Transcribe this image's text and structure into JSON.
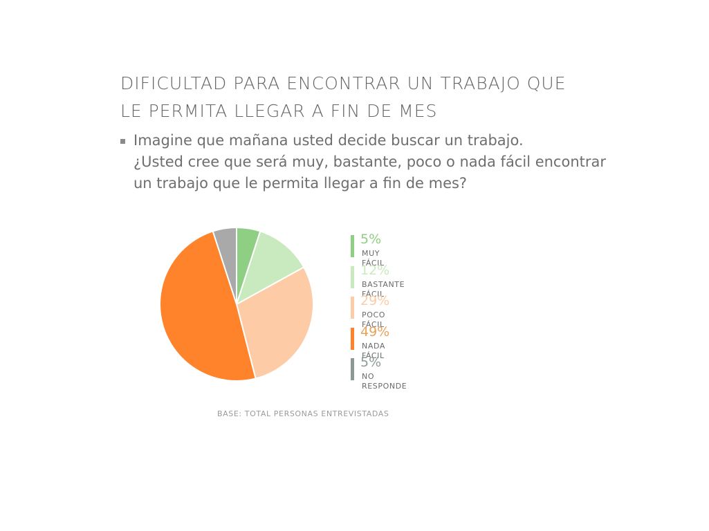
{
  "title": {
    "line1": "DIFICULTAD PARA ENCONTRAR UN TRABAJO QUE",
    "line2": "LE PERMITA LLEGAR A FIN DE MES"
  },
  "question": {
    "line1": "Imagine que mañana usted decide buscar un trabajo.",
    "line2": "¿Usted cree que será muy, bastante, poco o nada fácil encontrar",
    "line3": "un trabajo que le permita llegar a fin de mes?"
  },
  "base_note": "BASE: TOTAL PERSONAS ENTREVISTADAS",
  "chart_data": {
    "type": "pie",
    "title": "",
    "slices": [
      {
        "label": "MUY FÁCIL",
        "value": 5,
        "display": "5%",
        "color": "#8fcf83",
        "text_color": "#8fcf83"
      },
      {
        "label": "BASTANTE FÁCIL",
        "value": 12,
        "display": "12%",
        "color": "#c9e9bf",
        "text_color": "#c9e9bf"
      },
      {
        "label": "POCO FÁCIL",
        "value": 29,
        "display": "29%",
        "color": "#fdcba5",
        "text_color": "#fdcba5"
      },
      {
        "label": "NADA FÁCIL",
        "value": 49,
        "display": "49%",
        "color": "#ff832b",
        "text_color": "#e9a25a"
      },
      {
        "label": "NO RESPONDE",
        "value": 5,
        "display": "5%",
        "color": "#a9a9a9",
        "text_color": "#8c9a96",
        "bar_color": "#8e9994"
      }
    ],
    "legend_position": "right"
  }
}
